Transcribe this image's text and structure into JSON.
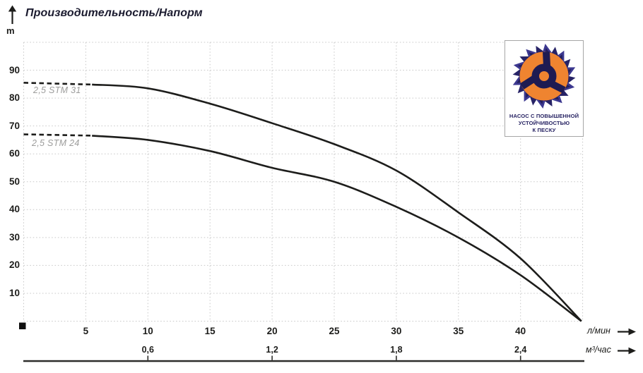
{
  "chart_data": {
    "type": "line",
    "title": "Производительность/Напорм",
    "ylabel": "m",
    "xlabel_primary": "л/мин",
    "xlabel_secondary": "м³/час",
    "xlim": [
      0,
      45
    ],
    "ylim": [
      0,
      100
    ],
    "grid": true,
    "legend_position": "on-curve-left",
    "y_ticks": [
      10,
      20,
      30,
      40,
      50,
      60,
      70,
      80,
      90
    ],
    "x_ticks_lmin": [
      5,
      10,
      15,
      20,
      25,
      30,
      35,
      40
    ],
    "x_ticks_m3h": [
      {
        "label": "0,6",
        "at_lmin": 10
      },
      {
        "label": "1,2",
        "at_lmin": 20
      },
      {
        "label": "1,8",
        "at_lmin": 30
      },
      {
        "label": "2,4",
        "at_lmin": 40
      }
    ],
    "series": [
      {
        "name": "2,5 STM 31",
        "dashed_until": 5.5,
        "points": [
          [
            0,
            85.5
          ],
          [
            5,
            85
          ],
          [
            10,
            83.5
          ],
          [
            15,
            78
          ],
          [
            20,
            71
          ],
          [
            25,
            63.5
          ],
          [
            30,
            54
          ],
          [
            35,
            39
          ],
          [
            40,
            22.5
          ],
          [
            44.9,
            0
          ]
        ]
      },
      {
        "name": "2,5 STM 24",
        "dashed_until": 5.5,
        "points": [
          [
            0,
            67
          ],
          [
            5,
            66.7
          ],
          [
            10,
            65
          ],
          [
            15,
            61
          ],
          [
            20,
            55
          ],
          [
            25,
            50
          ],
          [
            30,
            41
          ],
          [
            35,
            30
          ],
          [
            40,
            16.5
          ],
          [
            44.9,
            0
          ]
        ]
      }
    ]
  },
  "logo": {
    "lines": [
      "НАСОС С ПОВЫШЕННОЙ",
      "УСТОЙЧИВОСТЬЮ",
      "К ПЕСКУ"
    ],
    "colors": {
      "navy": "#272366",
      "navy_dark": "#1e1b52",
      "blue_light": "#3c3890",
      "orange": "#ef8430",
      "text": "#262262"
    }
  },
  "colors": {
    "curve": "#1d1d1b",
    "grid": "#c9c9c9",
    "axis": "#2c2c2a",
    "text": "#1d1d1b",
    "series_label": "#9c9c9b",
    "title": "#1b1b2f"
  }
}
